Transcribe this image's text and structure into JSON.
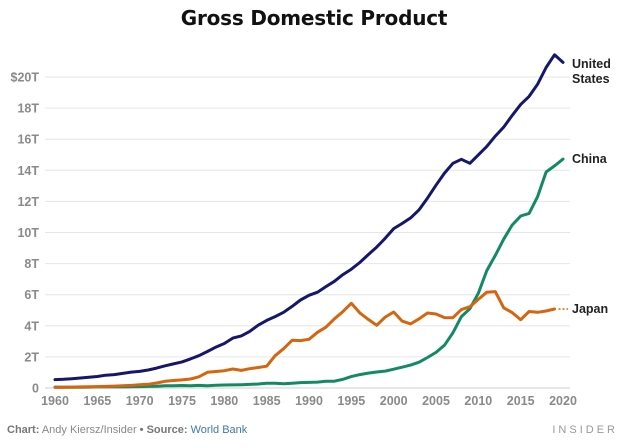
{
  "chart_data": {
    "type": "line",
    "title": "Gross Domestic Product",
    "xlabel": "",
    "ylabel": "",
    "xlim": [
      1960,
      2020
    ],
    "ylim": [
      0,
      20
    ],
    "grid": true,
    "y_ticks": [
      {
        "value": 0,
        "label": "0"
      },
      {
        "value": 2,
        "label": "2T"
      },
      {
        "value": 4,
        "label": "4T"
      },
      {
        "value": 6,
        "label": "6T"
      },
      {
        "value": 8,
        "label": "8T"
      },
      {
        "value": 10,
        "label": "10T"
      },
      {
        "value": 12,
        "label": "12T"
      },
      {
        "value": 14,
        "label": "14T"
      },
      {
        "value": 16,
        "label": "16T"
      },
      {
        "value": 18,
        "label": "18T"
      },
      {
        "value": 20,
        "label": "$20T"
      }
    ],
    "x_ticks": [
      {
        "value": 1960,
        "label": "1960"
      },
      {
        "value": 1965,
        "label": "1965"
      },
      {
        "value": 1970,
        "label": "1970"
      },
      {
        "value": 1975,
        "label": "1975"
      },
      {
        "value": 1980,
        "label": "1980"
      },
      {
        "value": 1985,
        "label": "1985"
      },
      {
        "value": 1990,
        "label": "1990"
      },
      {
        "value": 1995,
        "label": "1995"
      },
      {
        "value": 2000,
        "label": "2000"
      },
      {
        "value": 2005,
        "label": "2005"
      },
      {
        "value": 2010,
        "label": "2010"
      },
      {
        "value": 2015,
        "label": "2015"
      },
      {
        "value": 2020,
        "label": "2020"
      }
    ],
    "units": "trillions of US dollars",
    "series": [
      {
        "name": "United States",
        "label_lines": [
          "United",
          "States"
        ],
        "color": "#16166b",
        "x": [
          1960,
          1961,
          1962,
          1963,
          1964,
          1965,
          1966,
          1967,
          1968,
          1969,
          1970,
          1971,
          1972,
          1973,
          1974,
          1975,
          1976,
          1977,
          1978,
          1979,
          1980,
          1981,
          1982,
          1983,
          1984,
          1985,
          1986,
          1987,
          1988,
          1989,
          1990,
          1991,
          1992,
          1993,
          1994,
          1995,
          1996,
          1997,
          1998,
          1999,
          2000,
          2001,
          2002,
          2003,
          2004,
          2005,
          2006,
          2007,
          2008,
          2009,
          2010,
          2011,
          2012,
          2013,
          2014,
          2015,
          2016,
          2017,
          2018,
          2019,
          2020
        ],
        "values": [
          0.54,
          0.56,
          0.6,
          0.64,
          0.69,
          0.74,
          0.82,
          0.86,
          0.94,
          1.02,
          1.07,
          1.16,
          1.28,
          1.43,
          1.55,
          1.68,
          1.87,
          2.08,
          2.35,
          2.63,
          2.86,
          3.21,
          3.35,
          3.64,
          4.04,
          4.35,
          4.59,
          4.87,
          5.25,
          5.66,
          5.96,
          6.16,
          6.52,
          6.86,
          7.29,
          7.64,
          8.07,
          8.58,
          9.06,
          9.63,
          10.25,
          10.58,
          10.94,
          11.46,
          12.21,
          13.04,
          13.82,
          14.45,
          14.71,
          14.45,
          14.99,
          15.54,
          16.2,
          16.78,
          17.53,
          18.24,
          18.75,
          19.54,
          20.61,
          21.43,
          20.94
        ]
      },
      {
        "name": "China",
        "label_lines": [
          "China"
        ],
        "color": "#138a64",
        "x": [
          1960,
          1961,
          1962,
          1963,
          1964,
          1965,
          1966,
          1967,
          1968,
          1969,
          1970,
          1971,
          1972,
          1973,
          1974,
          1975,
          1976,
          1977,
          1978,
          1979,
          1980,
          1981,
          1982,
          1983,
          1984,
          1985,
          1986,
          1987,
          1988,
          1989,
          1990,
          1991,
          1992,
          1993,
          1994,
          1995,
          1996,
          1997,
          1998,
          1999,
          2000,
          2001,
          2002,
          2003,
          2004,
          2005,
          2006,
          2007,
          2008,
          2009,
          2010,
          2011,
          2012,
          2013,
          2014,
          2015,
          2016,
          2017,
          2018,
          2019,
          2020
        ],
        "values": [
          0.06,
          0.05,
          0.05,
          0.05,
          0.06,
          0.07,
          0.08,
          0.07,
          0.07,
          0.08,
          0.09,
          0.1,
          0.11,
          0.14,
          0.14,
          0.16,
          0.15,
          0.17,
          0.15,
          0.18,
          0.19,
          0.2,
          0.21,
          0.23,
          0.26,
          0.31,
          0.3,
          0.27,
          0.31,
          0.35,
          0.36,
          0.38,
          0.43,
          0.44,
          0.56,
          0.73,
          0.86,
          0.96,
          1.03,
          1.09,
          1.21,
          1.34,
          1.47,
          1.66,
          1.96,
          2.29,
          2.75,
          3.55,
          4.59,
          5.1,
          6.09,
          7.55,
          8.53,
          9.57,
          10.48,
          11.06,
          11.23,
          12.31,
          13.89,
          14.28,
          14.72
        ]
      },
      {
        "name": "Japan",
        "label_lines": [
          "Japan"
        ],
        "color": "#d5650f",
        "x": [
          1960,
          1961,
          1962,
          1963,
          1964,
          1965,
          1966,
          1967,
          1968,
          1969,
          1970,
          1971,
          1972,
          1973,
          1974,
          1975,
          1976,
          1977,
          1978,
          1979,
          1980,
          1981,
          1982,
          1983,
          1984,
          1985,
          1986,
          1987,
          1988,
          1989,
          1990,
          1991,
          1992,
          1993,
          1994,
          1995,
          1996,
          1997,
          1998,
          1999,
          2000,
          2001,
          2002,
          2003,
          2004,
          2005,
          2006,
          2007,
          2008,
          2009,
          2010,
          2011,
          2012,
          2013,
          2014,
          2015,
          2016,
          2017,
          2018,
          2019
        ],
        "values": [
          0.04,
          0.05,
          0.06,
          0.07,
          0.08,
          0.09,
          0.1,
          0.12,
          0.15,
          0.17,
          0.21,
          0.24,
          0.32,
          0.43,
          0.48,
          0.52,
          0.58,
          0.72,
          1.01,
          1.06,
          1.11,
          1.22,
          1.13,
          1.24,
          1.32,
          1.4,
          2.08,
          2.53,
          3.07,
          3.05,
          3.13,
          3.58,
          3.91,
          4.45,
          4.91,
          5.45,
          4.83,
          4.41,
          4.03,
          4.56,
          4.89,
          4.3,
          4.12,
          4.45,
          4.82,
          4.76,
          4.53,
          4.52,
          5.04,
          5.23,
          5.7,
          6.16,
          6.2,
          5.16,
          4.85,
          4.39,
          4.92,
          4.87,
          4.95,
          5.08
        ]
      }
    ]
  },
  "footer": {
    "chart_label": "Chart:",
    "chart_credit": "Andy Kiersz/Insider",
    "separator": "•",
    "source_label": "Source:",
    "source_name": "World Bank",
    "brand": "INSIDER"
  }
}
